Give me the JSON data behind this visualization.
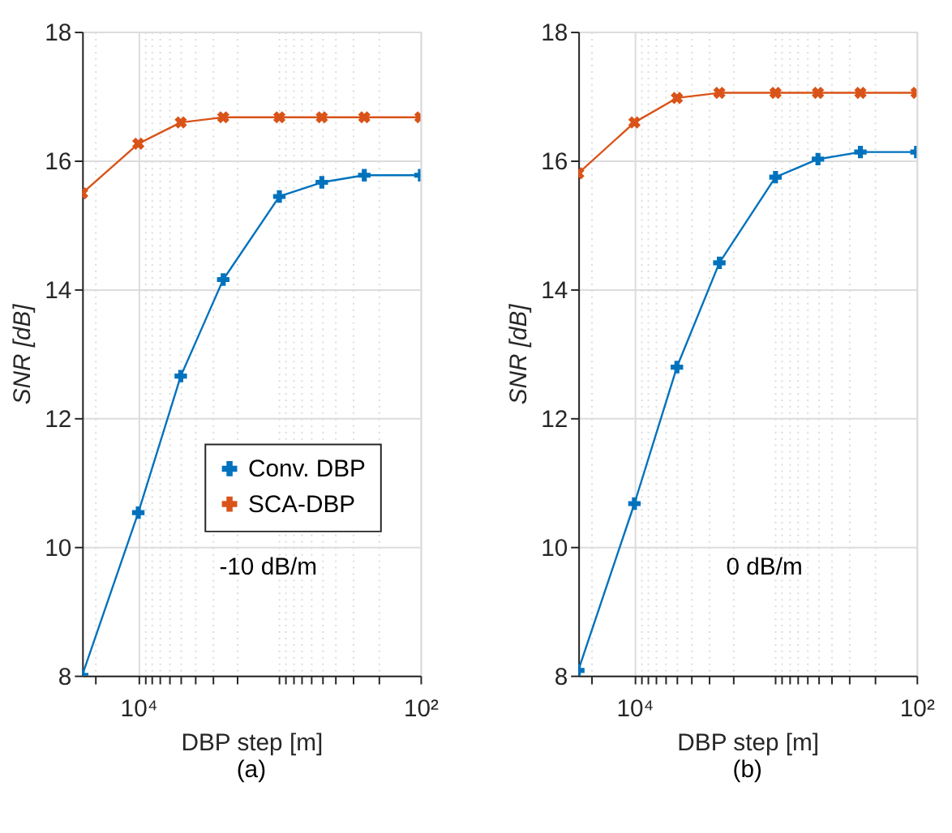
{
  "chart_data": [
    {
      "type": "line",
      "xlabel": "DBP step [m]",
      "ylabel": "SNR  [dB]",
      "log": "x",
      "xlim": [
        25000,
        100
      ],
      "ylim": [
        8,
        18
      ],
      "xticks": [
        {
          "value": 20000,
          "label": null
        },
        {
          "value": 10000,
          "label": "10⁴"
        },
        {
          "value": 9000,
          "label": null
        },
        {
          "value": 8000,
          "label": null
        },
        {
          "value": 7000,
          "label": null
        },
        {
          "value": 6000,
          "label": null
        },
        {
          "value": 5000,
          "label": null
        },
        {
          "value": 4000,
          "label": null
        },
        {
          "value": 3000,
          "label": null
        },
        {
          "value": 2000,
          "label": null
        },
        {
          "value": 1000,
          "label": null
        },
        {
          "value": 900,
          "label": null
        },
        {
          "value": 800,
          "label": null
        },
        {
          "value": 700,
          "label": null
        },
        {
          "value": 600,
          "label": null
        },
        {
          "value": 500,
          "label": null
        },
        {
          "value": 400,
          "label": null
        },
        {
          "value": 300,
          "label": null
        },
        {
          "value": 200,
          "label": null
        },
        {
          "value": 100,
          "label": "10²"
        }
      ],
      "yticks": [
        8,
        10,
        12,
        14,
        16,
        18
      ],
      "grid": true,
      "legend": "bottom right",
      "x": [
        25000,
        10000,
        5000,
        2500,
        1000,
        500,
        250,
        100
      ],
      "series": [
        {
          "name": "Conv. DBP",
          "color": "#0072bd",
          "marker": "cross",
          "values": [
            8.0,
            10.53,
            12.65,
            14.15,
            15.44,
            15.66,
            15.77,
            15.77
          ]
        },
        {
          "name": "SCA-DBP",
          "color": "#d95319",
          "marker": "x",
          "values": [
            15.49,
            16.26,
            16.59,
            16.67,
            16.67,
            16.67,
            16.67,
            16.67
          ]
        }
      ],
      "annotations": [
        "-10 dB/m",
        "(a)"
      ]
    },
    {
      "type": "line",
      "xlabel": "DBP step [m]",
      "ylabel": "SNR [dB]",
      "log": "x",
      "xlim": [
        25000,
        100
      ],
      "ylim": [
        8,
        18
      ],
      "xticks": [
        {
          "value": 20000,
          "label": null
        },
        {
          "value": 10000,
          "label": "10⁴"
        },
        {
          "value": 9000,
          "label": null
        },
        {
          "value": 8000,
          "label": null
        },
        {
          "value": 7000,
          "label": null
        },
        {
          "value": 6000,
          "label": null
        },
        {
          "value": 5000,
          "label": null
        },
        {
          "value": 4000,
          "label": null
        },
        {
          "value": 3000,
          "label": null
        },
        {
          "value": 2000,
          "label": null
        },
        {
          "value": 1000,
          "label": null
        },
        {
          "value": 900,
          "label": null
        },
        {
          "value": 800,
          "label": null
        },
        {
          "value": 700,
          "label": null
        },
        {
          "value": 600,
          "label": null
        },
        {
          "value": 500,
          "label": null
        },
        {
          "value": 400,
          "label": null
        },
        {
          "value": 300,
          "label": null
        },
        {
          "value": 200,
          "label": null
        },
        {
          "value": 100,
          "label": "10²"
        }
      ],
      "yticks": [
        8,
        10,
        12,
        14,
        16,
        18
      ],
      "grid": true,
      "legend": false,
      "x": [
        25000,
        10000,
        5000,
        2500,
        1000,
        500,
        250,
        100
      ],
      "series": [
        {
          "color": "#0072bd",
          "marker": "cross",
          "values": [
            8.08,
            10.67,
            12.79,
            14.41,
            15.74,
            16.02,
            16.13,
            16.13
          ]
        },
        {
          "color": "#d95319",
          "marker": "x",
          "values": [
            15.8,
            16.59,
            16.97,
            17.05,
            17.05,
            17.05,
            17.05,
            17.05
          ]
        }
      ],
      "annotations": [
        "0 dB/m",
        "(b)"
      ]
    }
  ]
}
